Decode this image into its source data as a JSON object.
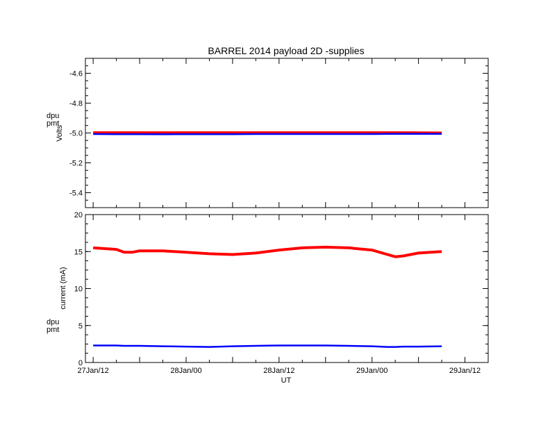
{
  "title": "BARREL 2014 payload 2D -supplies",
  "xlabel": "UT",
  "colors": {
    "dpu": "#ff0000",
    "pmt": "#0000ff",
    "axes": "#000000"
  },
  "chart_data": [
    {
      "type": "line",
      "ylabel": "Volts",
      "ylim": [
        -5.5,
        -4.5
      ],
      "yticks": [
        "-4.6",
        "-4.8",
        "-5.0",
        "-5.2",
        "-5.4"
      ],
      "ytick_values": [
        -4.6,
        -4.8,
        -5.0,
        -5.2,
        -5.4
      ],
      "legend": [
        "dpu",
        "pmt"
      ],
      "legend_placement": "left-outside",
      "x_hours": [
        0,
        6,
        12,
        18,
        24,
        30,
        36,
        42,
        48,
        54,
        60,
        66,
        72,
        78,
        84,
        90
      ],
      "series": [
        {
          "name": "dpu",
          "color": "#ff0000",
          "values": [
            -4.998,
            -4.998,
            -4.998,
            -4.998,
            -4.998,
            -4.998,
            -4.998,
            -4.998,
            -4.998,
            -4.998,
            -4.998,
            -4.998,
            -4.998,
            -4.998,
            -4.999,
            -5.0
          ]
        },
        {
          "name": "pmt",
          "color": "#0000ff",
          "values": [
            -5.007,
            -5.008,
            -5.008,
            -5.009,
            -5.008,
            -5.008,
            -5.008,
            -5.007,
            -5.007,
            -5.007,
            -5.007,
            -5.007,
            -5.007,
            -5.006,
            -5.006,
            -5.006
          ]
        }
      ]
    },
    {
      "type": "line",
      "ylabel": "current (mA)",
      "ylim": [
        0,
        20
      ],
      "yticks": [
        "0",
        "5",
        "10",
        "15",
        "20"
      ],
      "ytick_values": [
        0,
        5,
        10,
        15,
        20
      ],
      "legend": [
        "dpu",
        "pmt"
      ],
      "legend_placement": "left-outside",
      "x_hours": [
        0,
        3,
        6,
        8,
        10,
        12,
        18,
        24,
        30,
        36,
        42,
        48,
        54,
        60,
        66,
        72,
        76,
        78,
        80,
        84,
        90
      ],
      "series": [
        {
          "name": "dpu",
          "color": "#ff0000",
          "values": [
            15.5,
            15.4,
            15.3,
            14.9,
            14.9,
            15.1,
            15.1,
            14.9,
            14.7,
            14.6,
            14.8,
            15.2,
            15.5,
            15.6,
            15.5,
            15.2,
            14.6,
            14.3,
            14.4,
            14.8,
            15.0
          ]
        },
        {
          "name": "pmt",
          "color": "#0000ff",
          "values": [
            2.3,
            2.3,
            2.3,
            2.25,
            2.25,
            2.25,
            2.2,
            2.15,
            2.1,
            2.2,
            2.25,
            2.3,
            2.3,
            2.3,
            2.25,
            2.2,
            2.1,
            2.1,
            2.15,
            2.15,
            2.2
          ]
        }
      ]
    }
  ],
  "x_axis": {
    "range_hours": [
      -2,
      102
    ],
    "tick_labels": [
      "27Jan/12",
      "28Jan/00",
      "28Jan/12",
      "29Jan/00",
      "29Jan/12"
    ],
    "tick_hours": [
      0,
      24,
      48,
      72,
      96
    ]
  }
}
